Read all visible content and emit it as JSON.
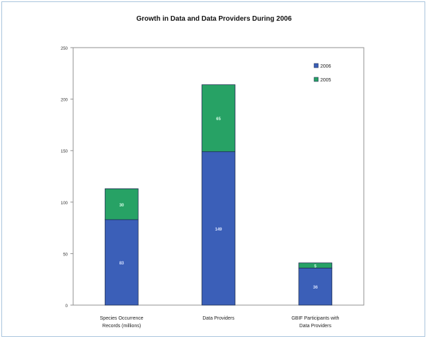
{
  "chart_data": {
    "type": "bar",
    "stacked": true,
    "title": "Growth in Data and Data Providers During 2006",
    "xlabel": "",
    "ylabel": "",
    "categories": [
      [
        "Species Occurrence",
        "Records (millions)"
      ],
      [
        "Data Providers"
      ],
      [
        "GBIF Participants with",
        "Data Providers"
      ]
    ],
    "series": [
      {
        "name": "2006",
        "values": [
          83,
          149,
          36
        ],
        "labels": [
          "83",
          "149",
          "36"
        ],
        "color": "#3b5fb8",
        "label_color": "#d9e4ff"
      },
      {
        "name": "2005",
        "values": [
          30,
          65,
          5
        ],
        "labels": [
          "30",
          "65",
          "5"
        ],
        "color": "#27a265",
        "label_color": "#d9ffe9"
      }
    ],
    "ylim": [
      0,
      250
    ],
    "yticks": [
      0,
      50,
      100,
      150,
      200,
      250
    ],
    "grid": false,
    "legend_position": "top-right"
  }
}
